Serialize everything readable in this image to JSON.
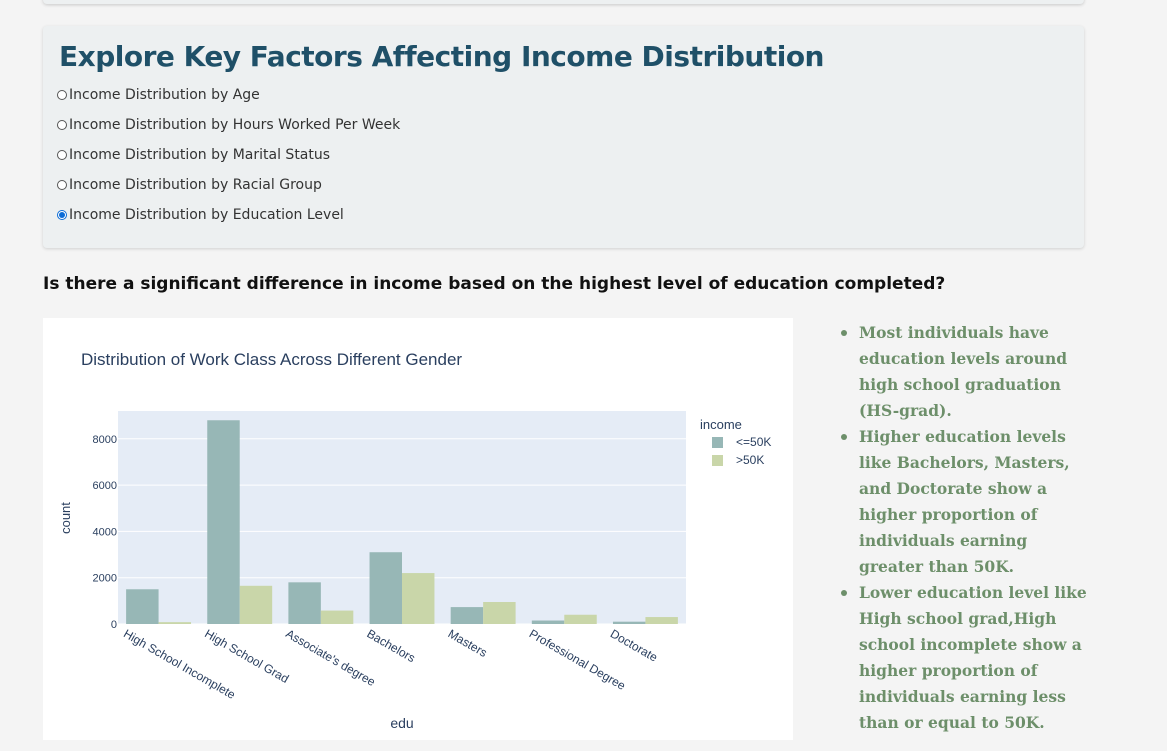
{
  "factors": {
    "title": "Explore Key Factors Affecting Income Distribution",
    "options": [
      {
        "label": "Income Distribution by Age",
        "selected": false
      },
      {
        "label": "Income Distribution by Hours Worked Per Week",
        "selected": false
      },
      {
        "label": "Income Distribution by Marital Status",
        "selected": false
      },
      {
        "label": "Income Distribution by Racial Group",
        "selected": false
      },
      {
        "label": "Income Distribution by Education Level",
        "selected": true
      }
    ]
  },
  "question": "Is there a significant difference in income based on the highest level of education completed?",
  "chart_data": {
    "type": "bar",
    "title": "Distribution of Work Class Across Different Gender",
    "xlabel": "edu",
    "ylabel": "count",
    "ylim": [
      0,
      9200
    ],
    "yticks": [
      0,
      2000,
      4000,
      6000,
      8000
    ],
    "ytick_labels": [
      "0",
      "2000",
      "4000",
      "6000",
      "8000"
    ],
    "grid": true,
    "legend_title": "income",
    "legend_position": "top-right",
    "categories": [
      "High School Incomplete",
      "High School Grad",
      "Associate's degree",
      "Bachelors",
      "Masters",
      "Professional Degree",
      "Doctorate"
    ],
    "series": [
      {
        "name": "<=50K",
        "color": "#97b7b6",
        "values": [
          1500,
          8800,
          1800,
          3100,
          730,
          150,
          100
        ]
      },
      {
        "name": ">50K",
        "color": "#c9d6a9",
        "values": [
          80,
          1650,
          580,
          2200,
          950,
          400,
          300
        ]
      }
    ],
    "plot_bg": "#e5ecf6"
  },
  "notes": [
    "Most individuals have education levels around high school graduation (HS-grad).",
    "Higher education levels like Bachelors, Masters, and Doctorate show a higher proportion of individuals earning greater than 50K.",
    "Lower education level like High school grad,High school incomplete show a higher proportion of individuals earning less than or equal to 50K."
  ]
}
